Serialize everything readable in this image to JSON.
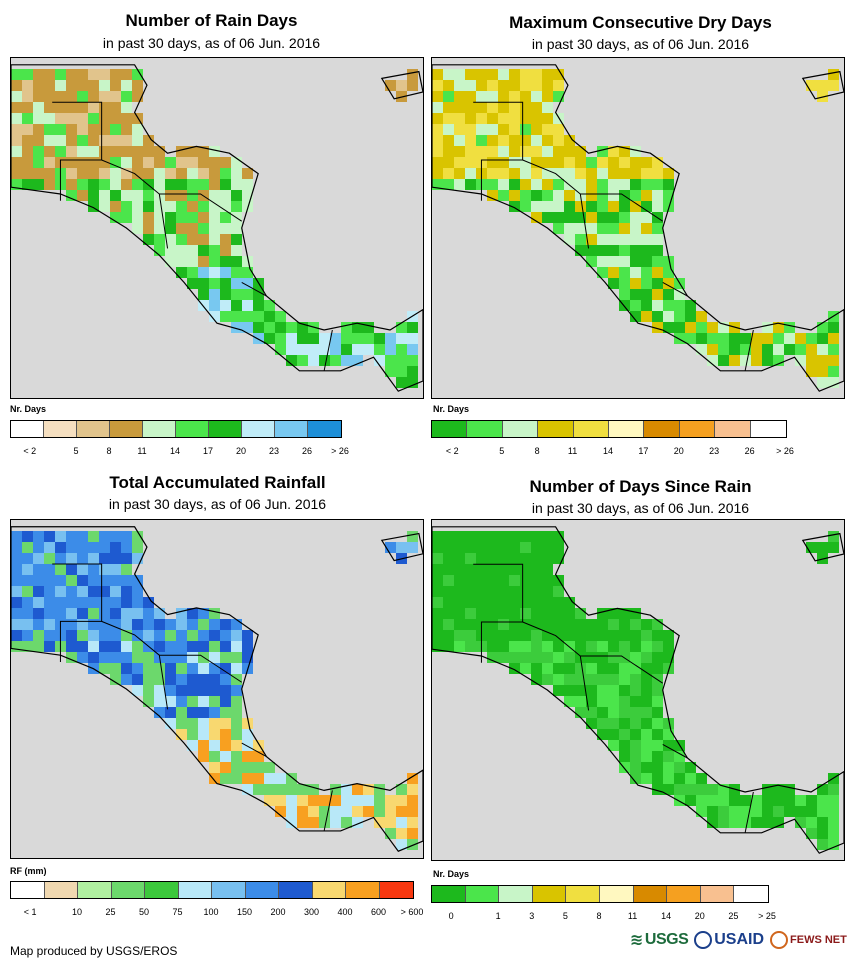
{
  "panels": [
    {
      "title": "Number of Rain Days",
      "subtitle": "in past 30 days, as of 06 Jun. 2016",
      "legend_title": "Nr. Days",
      "legend_colors": [
        "#ffffff",
        "#f5dfc0",
        "#e1c48c",
        "#c89a3c",
        "#c8f5c8",
        "#4be54b",
        "#1db91d",
        "#c0ecf8",
        "#78c8f0",
        "#1d8fd8"
      ],
      "legend_labels": [
        "< 2",
        "5",
        "8",
        "11",
        "14",
        "17",
        "20",
        "23",
        "26",
        "> 26"
      ],
      "map_palette": [
        "#c89a3c",
        "#e1c48c",
        "#c8f5c8",
        "#4be54b",
        "#1db91d",
        "#78c8f0",
        "#c0ecf8"
      ]
    },
    {
      "title": "Maximum Consecutive Dry Days",
      "subtitle": "in past 30 days, as of 06 Jun. 2016",
      "legend_title": "Nr. Days",
      "legend_colors": [
        "#1db91d",
        "#4be54b",
        "#c8f5c8",
        "#d9c400",
        "#f0df40",
        "#fff8c0",
        "#d88a00",
        "#f5a020",
        "#f8c090",
        "#ffffff"
      ],
      "legend_labels": [
        "< 2",
        "5",
        "8",
        "11",
        "14",
        "17",
        "20",
        "23",
        "26",
        "> 26"
      ],
      "map_palette": [
        "#d9c400",
        "#f0df40",
        "#c8f5c8",
        "#4be54b",
        "#1db91d",
        "#d9c400",
        "#c8f5c8"
      ]
    },
    {
      "title": "Total Accumulated Rainfall",
      "subtitle": "in past 30 days, as of 06 Jun. 2016",
      "legend_title": "RF (mm)",
      "legend_colors": [
        "#ffffff",
        "#f0d8b0",
        "#b0f0a0",
        "#6cd86c",
        "#3cc83c",
        "#b8e8f8",
        "#78c0f0",
        "#3c8ce8",
        "#1e5ad0",
        "#f8d870",
        "#f8a020",
        "#f83810"
      ],
      "legend_labels": [
        "< 1",
        "10",
        "25",
        "50",
        "75",
        "100",
        "150",
        "200",
        "300",
        "400",
        "600",
        "> 600"
      ],
      "map_palette": [
        "#3c8ce8",
        "#78c0f0",
        "#1e5ad0",
        "#6cd86c",
        "#b8e8f8",
        "#f8a020",
        "#f8d870"
      ]
    },
    {
      "title": "Number of Days Since Rain",
      "subtitle": "in past 30 days, as of 06 Jun. 2016",
      "legend_title": "Nr. Days",
      "legend_colors": [
        "#1db91d",
        "#4be54b",
        "#c8f5c8",
        "#d9c400",
        "#f0df40",
        "#fff8c0",
        "#d88a00",
        "#f5a020",
        "#f8c090",
        "#ffffff"
      ],
      "legend_labels": [
        "0",
        "1",
        "3",
        "5",
        "8",
        "11",
        "14",
        "20",
        "25",
        "> 25"
      ],
      "map_palette": [
        "#1db91d",
        "#1db91d",
        "#3ccc3c",
        "#1db91d",
        "#4be54b",
        "#1db91d",
        "#3ccc3c"
      ]
    }
  ],
  "footer": "Map produced by USGS/EROS",
  "logos": [
    "USGS",
    "USAID",
    "FEWS NET"
  ],
  "colors": {
    "ocean": "#d9d9d9",
    "border": "#000000"
  }
}
